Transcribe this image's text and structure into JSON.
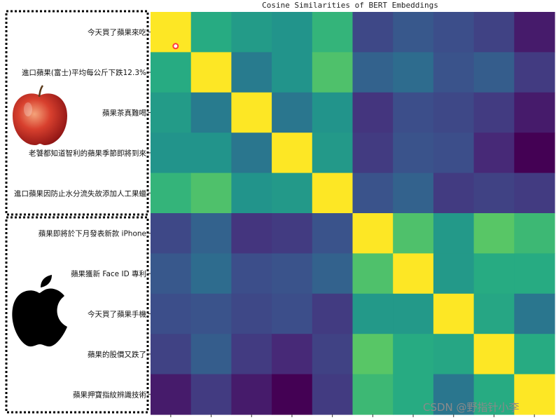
{
  "chart_data": {
    "type": "heatmap",
    "title": "Cosine Similarities of BERT Embeddings",
    "labels": [
      "今天買了蘋果來吃",
      "進口蘋果(富士)平均每公斤下跌12.3%",
      "蘋果茶真難喝",
      "老饕都知道智利的蘋果季節即將到來",
      "進口蘋果因防止水分流失故添加人工果蠟",
      "蘋果即將於下月發表新款 iPhone",
      "蘋果獲新 Face ID 專利",
      "今天買了蘋果手機",
      "蘋果的股價又跌了",
      "蘋果押寶指紋辨識技術"
    ],
    "values": [
      [
        1.0,
        0.62,
        0.55,
        0.52,
        0.66,
        0.22,
        0.28,
        0.24,
        0.2,
        0.08
      ],
      [
        0.62,
        1.0,
        0.42,
        0.52,
        0.72,
        0.32,
        0.36,
        0.26,
        0.3,
        0.18
      ],
      [
        0.55,
        0.42,
        1.0,
        0.4,
        0.52,
        0.16,
        0.24,
        0.22,
        0.18,
        0.08
      ],
      [
        0.52,
        0.52,
        0.4,
        1.0,
        0.54,
        0.18,
        0.26,
        0.24,
        0.12,
        0.0
      ],
      [
        0.66,
        0.72,
        0.52,
        0.54,
        1.0,
        0.26,
        0.32,
        0.18,
        0.2,
        0.18
      ],
      [
        0.22,
        0.32,
        0.16,
        0.18,
        0.26,
        1.0,
        0.72,
        0.54,
        0.74,
        0.68
      ],
      [
        0.28,
        0.36,
        0.24,
        0.26,
        0.32,
        0.72,
        1.0,
        0.54,
        0.62,
        0.62
      ],
      [
        0.24,
        0.26,
        0.22,
        0.24,
        0.18,
        0.54,
        0.54,
        1.0,
        0.6,
        0.4
      ],
      [
        0.2,
        0.3,
        0.18,
        0.12,
        0.2,
        0.74,
        0.62,
        0.6,
        1.0,
        0.62
      ],
      [
        0.08,
        0.18,
        0.08,
        0.0,
        0.18,
        0.68,
        0.62,
        0.4,
        0.62,
        1.0
      ]
    ],
    "colormap": "viridis",
    "vmin": 0,
    "vmax": 1,
    "legend": "none",
    "grid": false
  },
  "images": {
    "group1_icon": "red-apple-icon",
    "group2_icon": "apple-logo-icon"
  },
  "watermark": "CSDN @野指针小李",
  "colors": {
    "group_border": "#000000",
    "marker": "#ff3b3b"
  }
}
